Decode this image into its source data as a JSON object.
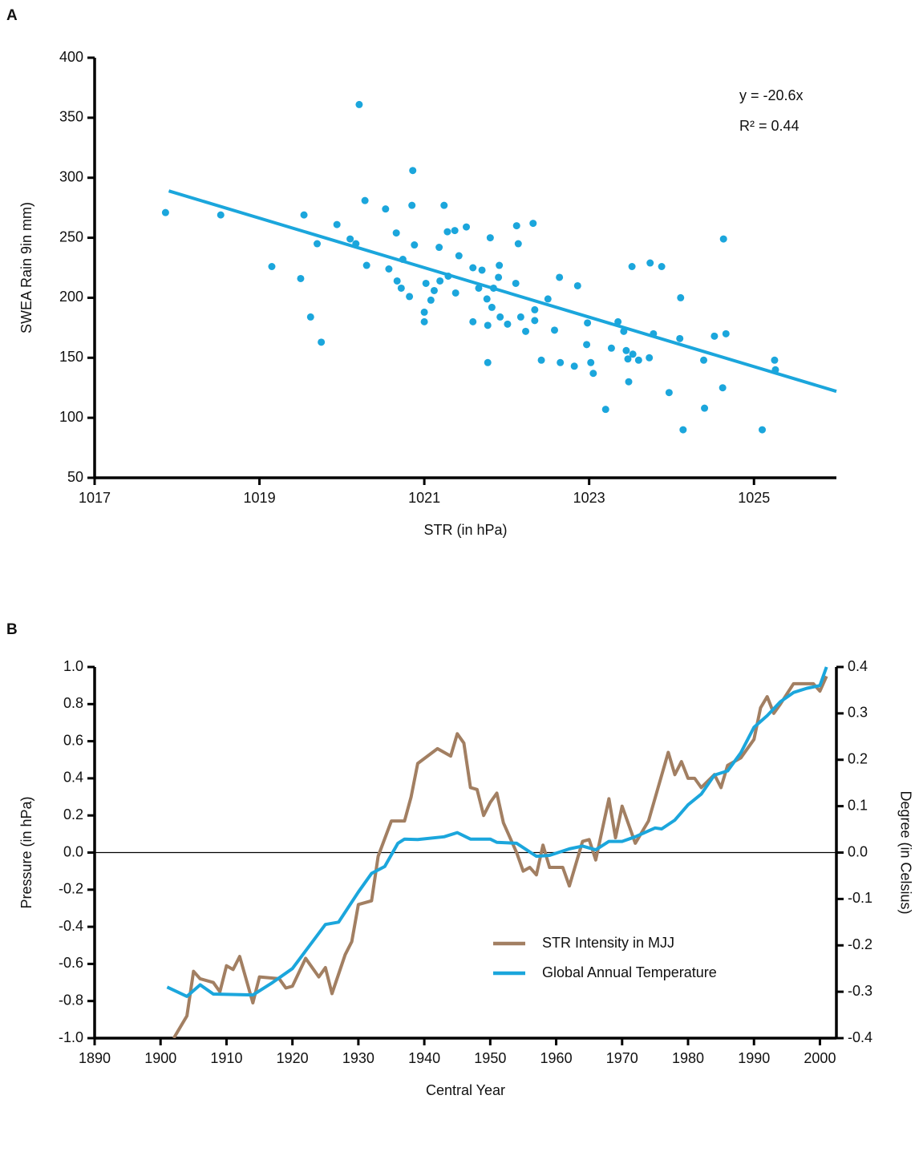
{
  "chart_data": [
    {
      "type": "scatter",
      "label": "A",
      "x_label": "STR (in hPa)",
      "y_label": "SWEA Rain 9in mm)",
      "annotations": [
        "y = -20.6x",
        "R² = 0.44"
      ],
      "xlim": [
        1017,
        1026
      ],
      "xticks": [
        1017,
        1019,
        1021,
        1023,
        1025
      ],
      "ylim": [
        50,
        400
      ],
      "yticks": [
        50,
        100,
        150,
        200,
        250,
        300,
        350,
        400
      ],
      "color": "#1ba6dc",
      "x": [
        1017.86,
        1018.53,
        1019.15,
        1019.5,
        1019.54,
        1019.62,
        1019.7,
        1019.75,
        1019.94,
        1020.1,
        1020.17,
        1020.21,
        1020.28,
        1020.3,
        1020.53,
        1020.57,
        1020.66,
        1020.67,
        1020.72,
        1020.74,
        1020.82,
        1020.85,
        1020.86,
        1020.88,
        1021.0,
        1021.0,
        1021.02,
        1021.08,
        1021.12,
        1021.18,
        1021.19,
        1021.24,
        1021.28,
        1021.29,
        1021.37,
        1021.38,
        1021.42,
        1021.51,
        1021.59,
        1021.59,
        1021.66,
        1021.7,
        1021.76,
        1021.77,
        1021.77,
        1021.8,
        1021.82,
        1021.84,
        1021.9,
        1021.91,
        1021.92,
        1022.01,
        1022.11,
        1022.12,
        1022.14,
        1022.17,
        1022.23,
        1022.32,
        1022.34,
        1022.34,
        1022.42,
        1022.5,
        1022.58,
        1022.64,
        1022.65,
        1022.82,
        1022.86,
        1022.97,
        1022.98,
        1023.02,
        1023.05,
        1023.2,
        1023.27,
        1023.35,
        1023.42,
        1023.45,
        1023.47,
        1023.48,
        1023.52,
        1023.53,
        1023.6,
        1023.73,
        1023.74,
        1023.78,
        1023.88,
        1023.97,
        1024.1,
        1024.11,
        1024.14,
        1024.39,
        1024.4,
        1024.52,
        1024.62,
        1024.63,
        1024.66,
        1025.1,
        1025.25,
        1025.26
      ],
      "values": [
        271,
        269,
        226,
        216,
        269,
        184,
        245,
        163,
        261,
        249,
        245,
        361,
        281,
        227,
        274,
        224,
        254,
        214,
        208,
        232,
        201,
        277,
        306,
        244,
        188,
        180,
        212,
        198,
        206,
        242,
        214,
        277,
        255,
        218,
        256,
        204,
        235,
        259,
        180,
        225,
        208,
        223,
        199,
        146,
        177,
        250,
        192,
        208,
        217,
        227,
        184,
        178,
        212,
        260,
        245,
        184,
        172,
        262,
        190,
        181,
        148,
        199,
        173,
        217,
        146,
        143,
        210,
        161,
        179,
        146,
        137,
        107,
        158,
        180,
        172,
        156,
        149,
        130,
        226,
        153,
        148,
        150,
        229,
        170,
        226,
        121,
        166,
        200,
        90,
        148,
        108,
        168,
        125,
        249,
        170,
        90,
        148,
        140
      ],
      "trendline": {
        "x": [
          1017.9,
          1026
        ],
        "values": [
          289,
          122
        ],
        "color": "#1ba6dc"
      }
    },
    {
      "type": "line",
      "label": "B",
      "x_label": "Central Year",
      "y_label": "Pressure (in hPa)",
      "y2_label": "Degree (in Celsius)",
      "xlim": [
        1890,
        2002.5
      ],
      "xticks": [
        1890,
        1900,
        1910,
        1920,
        1930,
        1940,
        1950,
        1960,
        1970,
        1980,
        1990,
        2000
      ],
      "ylim": [
        -1,
        1
      ],
      "yticks": [
        {
          "value": -1,
          "label": "-1.0"
        },
        -0.8,
        -0.6,
        -0.4,
        -0.2,
        {
          "value": 0,
          "label": "0.0"
        },
        0.2,
        0.4,
        0.6,
        0.8,
        {
          "value": 1,
          "label": "1.0"
        }
      ],
      "y2lim": [
        -0.4,
        0.4
      ],
      "y2ticks": [
        -0.4,
        -0.3,
        -0.2,
        -0.1,
        {
          "value": 0,
          "label": "0.0"
        },
        0.1,
        0.2,
        0.3,
        0.4
      ],
      "reference_line": 0,
      "legend": "lower right",
      "series": [
        {
          "name": "STR Intensity in MJJ",
          "color": "#a27f62",
          "x": [
            1902,
            1904,
            1905,
            1906,
            1908,
            1909,
            1910,
            1911,
            1912,
            1914,
            1915,
            1918,
            1919,
            1920,
            1922,
            1924,
            1925,
            1926,
            1928,
            1929,
            1930,
            1932,
            1933,
            1935,
            1936,
            1937,
            1938,
            1939,
            1942,
            1944,
            1945,
            1946,
            1947,
            1948,
            1949,
            1950,
            1951,
            1952,
            1954,
            1955,
            1956,
            1957,
            1958,
            1959,
            1961,
            1962,
            1964,
            1965,
            1966,
            1968,
            1969,
            1970,
            1972,
            1974,
            1977,
            1978,
            1979,
            1980,
            1981,
            1982,
            1984,
            1985,
            1986,
            1988,
            1990,
            1991,
            1992,
            1993,
            1994,
            1996,
            1999,
            2000,
            2001
          ],
          "values": [
            -1.0,
            -0.88,
            -0.64,
            -0.68,
            -0.7,
            -0.75,
            -0.61,
            -0.63,
            -0.56,
            -0.81,
            -0.67,
            -0.68,
            -0.73,
            -0.72,
            -0.57,
            -0.67,
            -0.62,
            -0.76,
            -0.55,
            -0.48,
            -0.28,
            -0.26,
            -0.02,
            0.17,
            0.17,
            0.17,
            0.3,
            0.48,
            0.56,
            0.52,
            0.64,
            0.59,
            0.35,
            0.34,
            0.2,
            0.27,
            0.32,
            0.16,
            0.0,
            -0.1,
            -0.08,
            -0.12,
            0.04,
            -0.08,
            -0.08,
            -0.18,
            0.06,
            0.07,
            -0.04,
            0.29,
            0.08,
            0.25,
            0.05,
            0.17,
            0.54,
            0.42,
            0.49,
            0.4,
            0.4,
            0.35,
            0.42,
            0.35,
            0.47,
            0.51,
            0.61,
            0.78,
            0.84,
            0.75,
            0.8,
            0.91,
            0.91,
            0.87,
            0.95
          ]
        },
        {
          "name": "Global Annual Temperature",
          "color": "#1ba6dc",
          "axis": "y2",
          "x": [
            1901,
            1904,
            1906,
            1908,
            1914,
            1917,
            1920,
            1925,
            1927,
            1930,
            1932,
            1934,
            1936,
            1937,
            1939,
            1943,
            1945,
            1947,
            1950,
            1951,
            1954,
            1957,
            1959,
            1962,
            1964,
            1966,
            1968,
            1970,
            1972,
            1975,
            1976,
            1978,
            1980,
            1982,
            1984,
            1986,
            1988,
            1990,
            1992,
            1994,
            1996,
            1998,
            2000,
            2001
          ],
          "values": [
            -0.29,
            -0.31,
            -0.285,
            -0.305,
            -0.307,
            -0.28,
            -0.25,
            -0.155,
            -0.15,
            -0.085,
            -0.045,
            -0.03,
            0.02,
            0.029,
            0.028,
            0.034,
            0.043,
            0.029,
            0.029,
            0.022,
            0.02,
            -0.008,
            -0.006,
            0.008,
            0.014,
            0.006,
            0.024,
            0.024,
            0.034,
            0.053,
            0.051,
            0.07,
            0.103,
            0.126,
            0.167,
            0.176,
            0.215,
            0.27,
            0.295,
            0.325,
            0.345,
            0.354,
            0.36,
            0.4
          ]
        }
      ]
    }
  ]
}
